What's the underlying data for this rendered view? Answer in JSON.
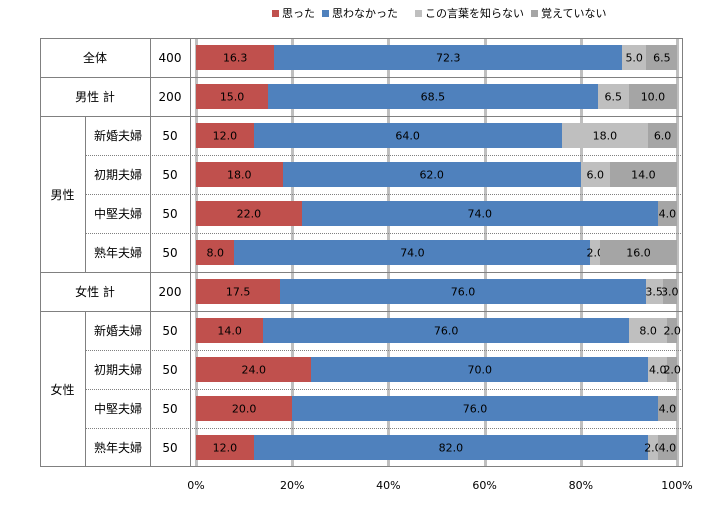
{
  "chart_data": {
    "type": "bar",
    "stacked": true,
    "orientation": "horizontal",
    "legend": [
      {
        "name": "思った",
        "color": "#c0504d"
      },
      {
        "name": "思わなかった",
        "color": "#4f81bd"
      },
      {
        "name": "この言葉を知らない",
        "color": "#bfbfbf"
      },
      {
        "name": "覚えていない",
        "color": "#a5a5a5"
      }
    ],
    "legend_position": "top",
    "xlim": [
      0,
      100
    ],
    "xticks": [
      "0%",
      "20%",
      "40%",
      "60%",
      "80%",
      "100%"
    ],
    "rows": [
      {
        "group": "",
        "label": "全体",
        "n": "400",
        "values": [
          16.3,
          72.3,
          5.0,
          6.5
        ],
        "labels": [
          "16.3",
          "72.3",
          "5.0",
          "6.5"
        ]
      },
      {
        "group": "",
        "label": "男性 計",
        "n": "200",
        "values": [
          15.0,
          68.5,
          6.5,
          10.0
        ],
        "labels": [
          "15.0",
          "68.5",
          "6.5",
          "10.0"
        ]
      },
      {
        "group": "男性",
        "label": "新婚夫婦",
        "n": "50",
        "values": [
          12.0,
          64.0,
          18.0,
          6.0
        ],
        "labels": [
          "12.0",
          "64.0",
          "18.0",
          "6.0"
        ]
      },
      {
        "group": "男性",
        "label": "初期夫婦",
        "n": "50",
        "values": [
          18.0,
          62.0,
          6.0,
          14.0
        ],
        "labels": [
          "18.0",
          "62.0",
          "6.0",
          "14.0"
        ]
      },
      {
        "group": "男性",
        "label": "中堅夫婦",
        "n": "50",
        "values": [
          22.0,
          74.0,
          0,
          4.0
        ],
        "labels": [
          "22.0",
          "74.0",
          "",
          "4.0"
        ]
      },
      {
        "group": "男性",
        "label": "熟年夫婦",
        "n": "50",
        "values": [
          8.0,
          74.0,
          2.0,
          16.0
        ],
        "labels": [
          "8.0",
          "74.0",
          "2.0",
          "16.0"
        ]
      },
      {
        "group": "",
        "label": "女性 計",
        "n": "200",
        "values": [
          17.5,
          76.0,
          3.5,
          3.0
        ],
        "labels": [
          "17.5",
          "76.0",
          "3.5",
          "3.0"
        ]
      },
      {
        "group": "女性",
        "label": "新婚夫婦",
        "n": "50",
        "values": [
          14.0,
          76.0,
          8.0,
          2.0
        ],
        "labels": [
          "14.0",
          "76.0",
          "8.0",
          "2.0"
        ]
      },
      {
        "group": "女性",
        "label": "初期夫婦",
        "n": "50",
        "values": [
          24.0,
          70.0,
          4.0,
          2.0
        ],
        "labels": [
          "24.0",
          "70.0",
          "4.0",
          "2.0"
        ]
      },
      {
        "group": "女性",
        "label": "中堅夫婦",
        "n": "50",
        "values": [
          20.0,
          76.0,
          0,
          4.0
        ],
        "labels": [
          "20.0",
          "76.0",
          "",
          "4.0"
        ]
      },
      {
        "group": "女性",
        "label": "熟年夫婦",
        "n": "50",
        "values": [
          12.0,
          82.0,
          2.0,
          4.0
        ],
        "labels": [
          "12.0",
          "82.0",
          "2.0",
          "4.0"
        ]
      }
    ],
    "groups": [
      "男性",
      "女性"
    ]
  }
}
